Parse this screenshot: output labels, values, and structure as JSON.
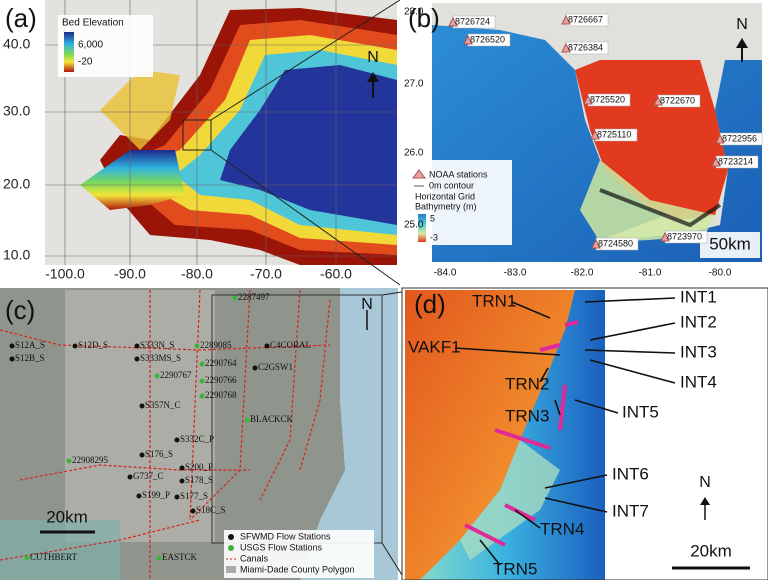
{
  "panels": {
    "a": {
      "label": "(a)",
      "legend_title": "Bed Elevation",
      "legend_high": "6,000",
      "legend_low": "-20",
      "north": "N",
      "yticks": [
        "40.0",
        "30.0",
        "20.0",
        "10.0"
      ],
      "xticks": [
        "-100.0",
        "-90.0",
        "-80.0",
        "-70.0",
        "-60.0"
      ]
    },
    "b": {
      "label": "(b)",
      "north": "N",
      "scale": "50km",
      "stations": [
        "8726724",
        "8726667",
        "8726520",
        "8726384",
        "8725520",
        "8722670",
        "8725110",
        "8722956",
        "8723214",
        "8724580",
        "8723970"
      ],
      "legend": [
        "NOAA stations",
        "0m contour",
        "Horizontal Grid",
        "Bathymetry (m)"
      ],
      "legend_high": "5",
      "legend_low": "-3",
      "yticks": [
        "28.0",
        "27.0",
        "26.0",
        "25.0"
      ],
      "xticks": [
        "-84.0",
        "-83.0",
        "-82.0",
        "-81.0",
        "-80.0"
      ]
    },
    "c": {
      "label": "(c)",
      "north": "N",
      "scale": "20km",
      "stations": [
        "S12A_S",
        "S12D_S",
        "S333N_S",
        "S12B_S",
        "S333MS_S",
        "2289085",
        "C4CORAL",
        "2287497",
        "2290764",
        "2290767",
        "2290766",
        "2290768",
        "C2GSW1",
        "S357N_C",
        "BLACKCK",
        "22908295",
        "S332C_P",
        "S176_S",
        "S200_P",
        "G737_C",
        "S178_S",
        "S199_P",
        "S177_S",
        "S18C_S",
        "CUTHBERT",
        "EASTCK"
      ],
      "legend": [
        "SFWMD Flow Stations",
        "USGS Flow Stations",
        "Canals",
        "Miami-Dade County Polygon"
      ]
    },
    "d": {
      "label": "(d)",
      "north": "N",
      "scale": "20km",
      "labels": [
        "TRN1",
        "VAKF1",
        "TRN2",
        "TRN3",
        "TRN4",
        "TRN5",
        "INT1",
        "INT2",
        "INT3",
        "INT4",
        "INT5",
        "INT6",
        "INT7"
      ]
    }
  }
}
